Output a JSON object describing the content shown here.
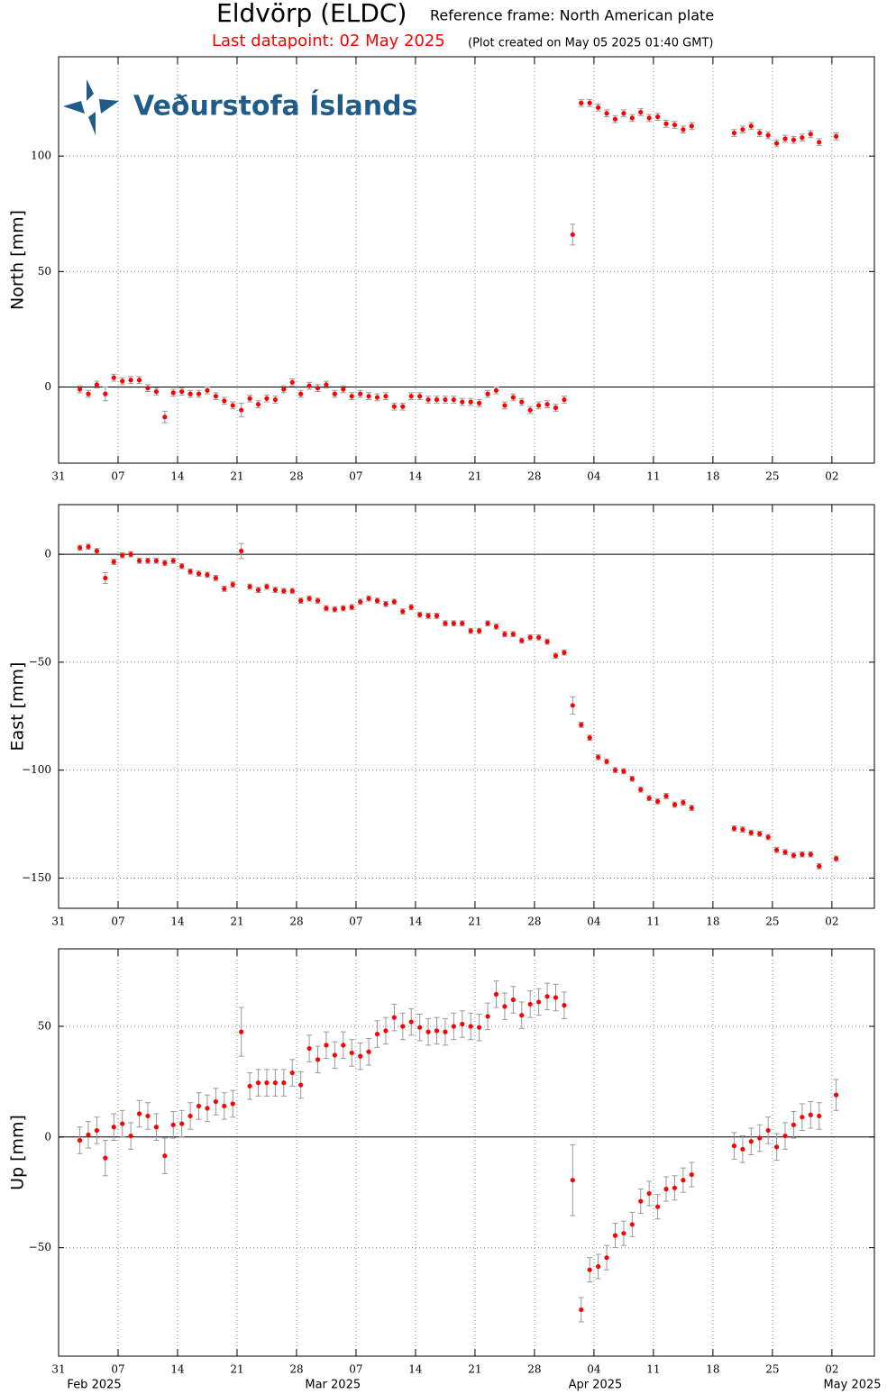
{
  "header": {
    "title": "Eldvörp (ELDC)",
    "frame": "Reference frame: North American plate",
    "last": "Last datapoint: 02 May 2025",
    "created": "(Plot created on May 05 2025 01:40 GMT)"
  },
  "logo": {
    "text": "Veðurstofa Íslands"
  },
  "chart_data": [
    {
      "type": "scatter",
      "ylabel": "North [mm]",
      "xlim": [
        "2025-01-31",
        "2025-05-07"
      ],
      "ylim": [
        -33,
        143
      ],
      "grid": true,
      "yticks": [
        0,
        50,
        100
      ],
      "xticks": [
        {
          "value": "2025-01-31",
          "label": "31"
        },
        {
          "value": "2025-02-07",
          "label": "07"
        },
        {
          "value": "2025-02-14",
          "label": "14"
        },
        {
          "value": "2025-02-21",
          "label": "21"
        },
        {
          "value": "2025-02-28",
          "label": "28"
        },
        {
          "value": "2025-03-07",
          "label": "07"
        },
        {
          "value": "2025-03-14",
          "label": "14"
        },
        {
          "value": "2025-03-21",
          "label": "21"
        },
        {
          "value": "2025-03-28",
          "label": "28"
        },
        {
          "value": "2025-04-04",
          "label": "04"
        },
        {
          "value": "2025-04-11",
          "label": "11"
        },
        {
          "value": "2025-04-18",
          "label": "18"
        },
        {
          "value": "2025-04-25",
          "label": "25"
        },
        {
          "value": "2025-05-02",
          "label": "02"
        }
      ],
      "x": [
        "2025-02-02",
        "2025-02-03",
        "2025-02-04",
        "2025-02-05",
        "2025-02-06",
        "2025-02-07",
        "2025-02-08",
        "2025-02-09",
        "2025-02-10",
        "2025-02-11",
        "2025-02-12",
        "2025-02-13",
        "2025-02-14",
        "2025-02-15",
        "2025-02-16",
        "2025-02-17",
        "2025-02-18",
        "2025-02-19",
        "2025-02-20",
        "2025-02-21",
        "2025-02-22",
        "2025-02-23",
        "2025-02-24",
        "2025-02-25",
        "2025-02-26",
        "2025-02-27",
        "2025-02-28",
        "2025-03-01",
        "2025-03-02",
        "2025-03-03",
        "2025-03-04",
        "2025-03-05",
        "2025-03-06",
        "2025-03-07",
        "2025-03-08",
        "2025-03-09",
        "2025-03-10",
        "2025-03-11",
        "2025-03-12",
        "2025-03-13",
        "2025-03-14",
        "2025-03-15",
        "2025-03-16",
        "2025-03-17",
        "2025-03-18",
        "2025-03-19",
        "2025-03-20",
        "2025-03-21",
        "2025-03-22",
        "2025-03-23",
        "2025-03-24",
        "2025-03-25",
        "2025-03-26",
        "2025-03-27",
        "2025-03-28",
        "2025-03-29",
        "2025-03-30",
        "2025-03-31",
        "2025-04-01",
        "2025-04-02",
        "2025-04-03",
        "2025-04-04",
        "2025-04-05",
        "2025-04-06",
        "2025-04-07",
        "2025-04-08",
        "2025-04-09",
        "2025-04-10",
        "2025-04-11",
        "2025-04-12",
        "2025-04-13",
        "2025-04-14",
        "2025-04-15",
        "2025-04-20",
        "2025-04-21",
        "2025-04-22",
        "2025-04-23",
        "2025-04-24",
        "2025-04-25",
        "2025-04-26",
        "2025-04-27",
        "2025-04-28",
        "2025-04-29",
        "2025-04-30",
        "2025-05-02"
      ],
      "series": [
        {
          "color": "#ff0000",
          "error_color": "#999999",
          "values": [
            -1,
            -3,
            1,
            -3,
            4,
            2.5,
            3,
            3,
            -0.5,
            -2,
            -13,
            -2.5,
            -2,
            -3,
            -3,
            -1.5,
            -4,
            -6,
            -8,
            -10,
            -5,
            -7.5,
            -5,
            -5.5,
            -1,
            2,
            -3,
            0.5,
            -0.5,
            1,
            -3,
            -1,
            -4,
            -3,
            -4,
            -4.5,
            -4,
            -8.5,
            -8.5,
            -4,
            -4,
            -5.5,
            -5.5,
            -5.5,
            -5.5,
            -6.5,
            -6.5,
            -7,
            -3,
            -1.5,
            -8,
            -4.5,
            -6.5,
            -10,
            -8,
            -7.5,
            -9,
            -5.5,
            66,
            123,
            123,
            121,
            118.5,
            116,
            118.5,
            116.5,
            119,
            116.5,
            117,
            114,
            113.5,
            111.5,
            113,
            110,
            111.5,
            113,
            110,
            109,
            105.5,
            107.5,
            107,
            108,
            109.5,
            106,
            108.5
          ],
          "errors": [
            1.5,
            1.5,
            1.5,
            3,
            1.5,
            1.5,
            1.5,
            1.5,
            1.5,
            1.5,
            2.5,
            1.5,
            1.5,
            1.5,
            1.5,
            1.5,
            1.5,
            1.5,
            1.5,
            3,
            1.5,
            1.5,
            1.5,
            1.5,
            1.5,
            1.5,
            1.5,
            1.5,
            1.5,
            1.5,
            1.5,
            1.5,
            1.5,
            1.5,
            1.5,
            1.5,
            1.5,
            1.5,
            1.5,
            1.5,
            1.5,
            1.5,
            1.5,
            1.5,
            1.5,
            1.5,
            1.5,
            1.5,
            1.5,
            1.5,
            1.5,
            1.5,
            1.5,
            1.5,
            1.5,
            1.5,
            1.5,
            1.5,
            4.5,
            1.5,
            1.5,
            1.5,
            1.5,
            1.5,
            1.5,
            1.5,
            1.5,
            1.5,
            1.5,
            1.5,
            1.5,
            1.5,
            1.5,
            1.5,
            1.5,
            1.5,
            1.5,
            1.5,
            1.5,
            1.5,
            1.5,
            1.5,
            1.5,
            1.5,
            1.5
          ]
        }
      ]
    },
    {
      "type": "scatter",
      "ylabel": "East [mm]",
      "xlim": [
        "2025-01-31",
        "2025-05-07"
      ],
      "ylim": [
        -164,
        23
      ],
      "grid": true,
      "yticks": [
        {
          "value": -150,
          "label": "−150"
        },
        {
          "value": -100,
          "label": "−100"
        },
        {
          "value": -50,
          "label": "−50"
        },
        0
      ],
      "xticks": [
        {
          "value": "2025-01-31",
          "label": "31"
        },
        {
          "value": "2025-02-07",
          "label": "07"
        },
        {
          "value": "2025-02-14",
          "label": "14"
        },
        {
          "value": "2025-02-21",
          "label": "21"
        },
        {
          "value": "2025-02-28",
          "label": "28"
        },
        {
          "value": "2025-03-07",
          "label": "07"
        },
        {
          "value": "2025-03-14",
          "label": "14"
        },
        {
          "value": "2025-03-21",
          "label": "21"
        },
        {
          "value": "2025-03-28",
          "label": "28"
        },
        {
          "value": "2025-04-04",
          "label": "04"
        },
        {
          "value": "2025-04-11",
          "label": "11"
        },
        {
          "value": "2025-04-18",
          "label": "18"
        },
        {
          "value": "2025-04-25",
          "label": "25"
        },
        {
          "value": "2025-05-02",
          "label": "02"
        }
      ],
      "x": [
        "2025-02-02",
        "2025-02-03",
        "2025-02-04",
        "2025-02-05",
        "2025-02-06",
        "2025-02-07",
        "2025-02-08",
        "2025-02-09",
        "2025-02-10",
        "2025-02-11",
        "2025-02-12",
        "2025-02-13",
        "2025-02-14",
        "2025-02-15",
        "2025-02-16",
        "2025-02-17",
        "2025-02-18",
        "2025-02-19",
        "2025-02-20",
        "2025-02-21",
        "2025-02-22",
        "2025-02-23",
        "2025-02-24",
        "2025-02-25",
        "2025-02-26",
        "2025-02-27",
        "2025-02-28",
        "2025-03-01",
        "2025-03-02",
        "2025-03-03",
        "2025-03-04",
        "2025-03-05",
        "2025-03-06",
        "2025-03-07",
        "2025-03-08",
        "2025-03-09",
        "2025-03-10",
        "2025-03-11",
        "2025-03-12",
        "2025-03-13",
        "2025-03-14",
        "2025-03-15",
        "2025-03-16",
        "2025-03-17",
        "2025-03-18",
        "2025-03-19",
        "2025-03-20",
        "2025-03-21",
        "2025-03-22",
        "2025-03-23",
        "2025-03-24",
        "2025-03-25",
        "2025-03-26",
        "2025-03-27",
        "2025-03-28",
        "2025-03-29",
        "2025-03-30",
        "2025-03-31",
        "2025-04-01",
        "2025-04-02",
        "2025-04-03",
        "2025-04-04",
        "2025-04-05",
        "2025-04-06",
        "2025-04-07",
        "2025-04-08",
        "2025-04-09",
        "2025-04-10",
        "2025-04-11",
        "2025-04-12",
        "2025-04-13",
        "2025-04-14",
        "2025-04-15",
        "2025-04-20",
        "2025-04-21",
        "2025-04-22",
        "2025-04-23",
        "2025-04-24",
        "2025-04-25",
        "2025-04-26",
        "2025-04-27",
        "2025-04-28",
        "2025-04-29",
        "2025-04-30",
        "2025-05-02"
      ],
      "series": [
        {
          "color": "#ff0000",
          "error_color": "#999999",
          "values": [
            3,
            3.5,
            1.5,
            -11,
            -3.5,
            -0.5,
            0,
            -3,
            -3,
            -3,
            -4,
            -3,
            -5.5,
            -8,
            -9,
            -9.5,
            -11,
            -16,
            -14,
            1.5,
            -15,
            -16.5,
            -15,
            -16.5,
            -17,
            -17,
            -21.5,
            -20.5,
            -21.5,
            -25,
            -25.5,
            -25,
            -24.5,
            -22,
            -20.5,
            -21.5,
            -23,
            -22,
            -26.5,
            -24.5,
            -28,
            -28.5,
            -28.5,
            -32,
            -32,
            -32,
            -35.5,
            -35.5,
            -32,
            -33.5,
            -37,
            -37,
            -40,
            -38.5,
            -38.5,
            -40.5,
            -47,
            -45.5,
            -70,
            -79,
            -85,
            -94,
            -96,
            -100,
            -100.5,
            -104,
            -109,
            -113,
            -114.5,
            -112,
            -116,
            -115,
            -117.5,
            -127,
            -127.5,
            -129,
            -129.5,
            -131,
            -137,
            -138,
            -139.5,
            -139,
            -139,
            -144.5,
            -141
          ],
          "errors": [
            1.2,
            1.2,
            1.2,
            2.5,
            1.2,
            1.2,
            1.2,
            1.2,
            1.2,
            1.2,
            1.2,
            1.2,
            1.2,
            1.2,
            1.2,
            1.2,
            1.2,
            1.2,
            1.2,
            3.5,
            1.2,
            1.2,
            1.2,
            1.2,
            1.2,
            1.2,
            1.2,
            1.2,
            1.2,
            1.2,
            1.2,
            1.2,
            1.2,
            1.2,
            1.2,
            1.2,
            1.2,
            1.2,
            1.2,
            1.2,
            1.2,
            1.2,
            1.2,
            1.2,
            1.2,
            1.2,
            1.2,
            1.2,
            1.2,
            1.2,
            1.2,
            1.2,
            1.2,
            1.2,
            1.2,
            1.2,
            1.2,
            1.2,
            4,
            1.2,
            1.2,
            1.2,
            1.2,
            1.2,
            1.2,
            1.2,
            1.2,
            1.2,
            1.2,
            1.2,
            1.2,
            1.2,
            1.2,
            1.2,
            1.2,
            1.2,
            1.2,
            1.2,
            1.2,
            1.2,
            1.2,
            1.2,
            1.2,
            1.2,
            1.2
          ]
        }
      ]
    },
    {
      "type": "scatter",
      "ylabel": "Up [mm]",
      "xlim": [
        "2025-01-31",
        "2025-05-07"
      ],
      "ylim": [
        -99,
        85
      ],
      "grid": true,
      "yticks": [
        {
          "value": -50,
          "label": "−50"
        },
        0,
        50
      ],
      "xticks": [
        {
          "value": "2025-01-31",
          "label": "31"
        },
        {
          "value": "2025-02-07",
          "label": "07"
        },
        {
          "value": "2025-02-14",
          "label": "14"
        },
        {
          "value": "2025-02-21",
          "label": "21"
        },
        {
          "value": "2025-02-28",
          "label": "28"
        },
        {
          "value": "2025-03-07",
          "label": "07"
        },
        {
          "value": "2025-03-14",
          "label": "14"
        },
        {
          "value": "2025-03-21",
          "label": "21"
        },
        {
          "value": "2025-03-28",
          "label": "28"
        },
        {
          "value": "2025-04-04",
          "label": "04"
        },
        {
          "value": "2025-04-11",
          "label": "11"
        },
        {
          "value": "2025-04-18",
          "label": "18"
        },
        {
          "value": "2025-04-25",
          "label": "25"
        },
        {
          "value": "2025-05-02",
          "label": "02"
        }
      ],
      "month_labels": [
        {
          "value": "2025-02-01",
          "label": "Feb 2025"
        },
        {
          "value": "2025-03-01",
          "label": "Mar 2025"
        },
        {
          "value": "2025-04-01",
          "label": "Apr 2025"
        },
        {
          "value": "2025-05-01",
          "label": "May 2025"
        }
      ],
      "x": [
        "2025-02-02",
        "2025-02-03",
        "2025-02-04",
        "2025-02-05",
        "2025-02-06",
        "2025-02-07",
        "2025-02-08",
        "2025-02-09",
        "2025-02-10",
        "2025-02-11",
        "2025-02-12",
        "2025-02-13",
        "2025-02-14",
        "2025-02-15",
        "2025-02-16",
        "2025-02-17",
        "2025-02-18",
        "2025-02-19",
        "2025-02-20",
        "2025-02-21",
        "2025-02-22",
        "2025-02-23",
        "2025-02-24",
        "2025-02-25",
        "2025-02-26",
        "2025-02-27",
        "2025-02-28",
        "2025-03-01",
        "2025-03-02",
        "2025-03-03",
        "2025-03-04",
        "2025-03-05",
        "2025-03-06",
        "2025-03-07",
        "2025-03-08",
        "2025-03-09",
        "2025-03-10",
        "2025-03-11",
        "2025-03-12",
        "2025-03-13",
        "2025-03-14",
        "2025-03-15",
        "2025-03-16",
        "2025-03-17",
        "2025-03-18",
        "2025-03-19",
        "2025-03-20",
        "2025-03-21",
        "2025-03-22",
        "2025-03-23",
        "2025-03-24",
        "2025-03-25",
        "2025-03-26",
        "2025-03-27",
        "2025-03-28",
        "2025-03-29",
        "2025-03-30",
        "2025-03-31",
        "2025-04-01",
        "2025-04-02",
        "2025-04-03",
        "2025-04-04",
        "2025-04-05",
        "2025-04-06",
        "2025-04-07",
        "2025-04-08",
        "2025-04-09",
        "2025-04-10",
        "2025-04-11",
        "2025-04-12",
        "2025-04-13",
        "2025-04-14",
        "2025-04-15",
        "2025-04-20",
        "2025-04-21",
        "2025-04-22",
        "2025-04-23",
        "2025-04-24",
        "2025-04-25",
        "2025-04-26",
        "2025-04-27",
        "2025-04-28",
        "2025-04-29",
        "2025-04-30",
        "2025-05-02"
      ],
      "series": [
        {
          "color": "#ff0000",
          "error_color": "#999999",
          "values": [
            -1.5,
            1,
            3,
            -9.5,
            4.5,
            6,
            0.5,
            10.5,
            9.5,
            4.5,
            -8.5,
            5.5,
            6,
            9.5,
            14,
            13,
            16,
            14,
            15,
            47.5,
            23,
            24.5,
            24.5,
            24.5,
            24.5,
            29,
            23.5,
            40,
            35,
            41.5,
            37,
            41.5,
            38,
            36.5,
            38.5,
            46.5,
            48,
            54,
            50,
            52,
            49.5,
            47.5,
            48,
            47.5,
            50,
            51,
            50,
            49.5,
            54.5,
            64.5,
            59,
            62,
            55,
            60,
            61,
            63.5,
            63,
            59.5,
            -19.5,
            -78,
            -60,
            -58.5,
            -54.5,
            -44.5,
            -43.5,
            -39.5,
            -29,
            -25.5,
            -31.5,
            -23.5,
            -23,
            -19.5,
            -17,
            -4,
            -5.5,
            -2,
            -0.5,
            3,
            -4.5,
            0.5,
            5.5,
            9,
            10,
            9.5,
            19
          ],
          "errors": [
            6,
            6,
            6,
            8,
            6,
            6,
            6,
            6,
            6,
            6,
            8,
            6,
            6,
            6,
            6,
            6,
            6,
            6,
            6,
            11,
            6,
            6,
            6,
            6,
            6,
            6,
            6,
            6,
            6,
            6,
            6,
            6,
            6,
            6,
            6,
            6,
            6,
            6,
            6,
            6,
            6,
            6,
            6,
            6,
            6,
            6,
            6,
            6,
            6,
            6,
            6,
            6,
            6,
            6,
            6,
            6,
            6,
            6,
            16,
            5.5,
            5.5,
            5.5,
            5.5,
            5.5,
            5.5,
            5.5,
            5.5,
            5.5,
            5.5,
            5.5,
            5.5,
            5.5,
            5.5,
            6,
            6,
            6,
            6,
            6,
            6,
            6,
            6,
            6,
            6,
            6,
            7
          ]
        }
      ]
    }
  ]
}
